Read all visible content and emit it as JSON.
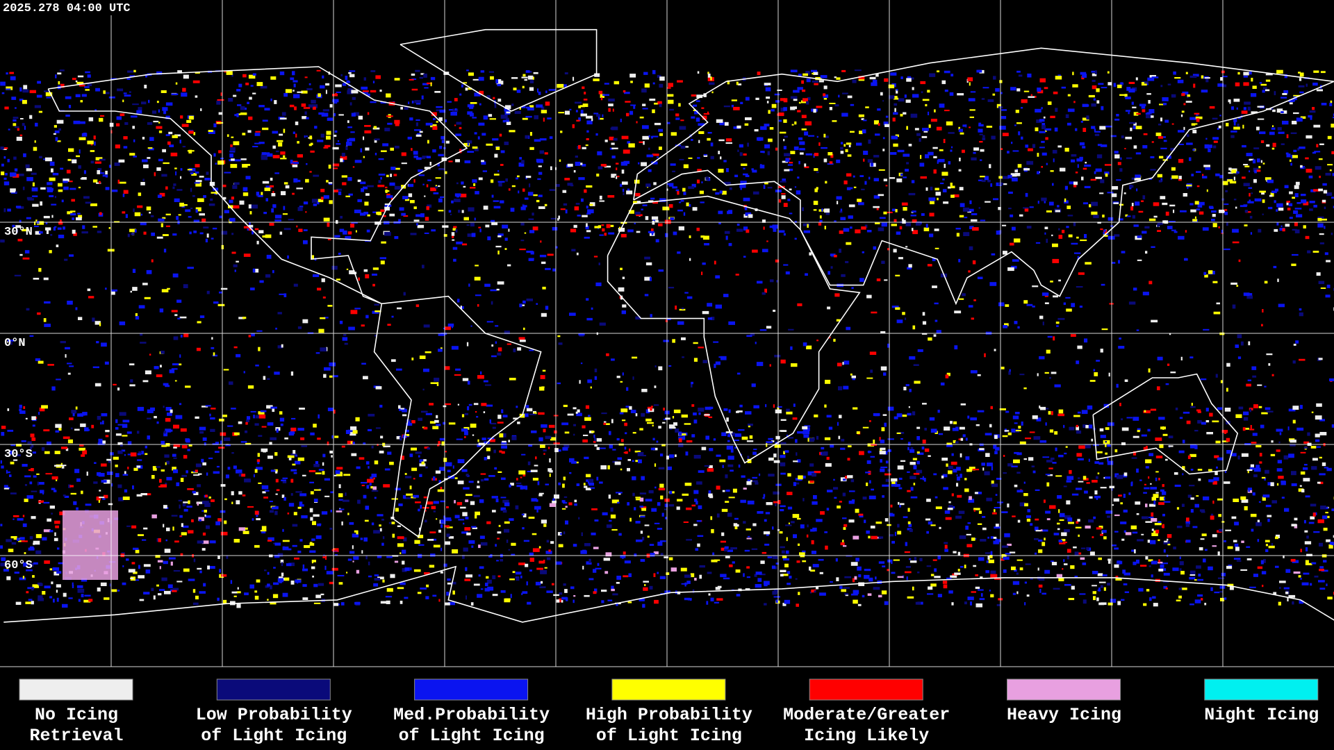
{
  "header": {
    "timestamp": "2025.278 04:00 UTC"
  },
  "map": {
    "latitude_labels": [
      "30°N",
      "0°N",
      "30°S",
      "60°S"
    ]
  },
  "legend": {
    "items": [
      {
        "label": [
          "No Icing",
          "Retrieval"
        ],
        "color": "#eeeeee"
      },
      {
        "label": [
          "Low Probability",
          "of Light Icing"
        ],
        "color": "#0a0a7a"
      },
      {
        "label": [
          "Med.Probability",
          "of Light Icing"
        ],
        "color": "#0a14f0"
      },
      {
        "label": [
          "High Probability",
          "of Light Icing"
        ],
        "color": "#ffff00"
      },
      {
        "label": [
          "Moderate/Greater",
          "Icing Likely"
        ],
        "color": "#ff0000"
      },
      {
        "label": [
          "Heavy Icing"
        ],
        "color": "#e8a0e0"
      },
      {
        "label": [
          "Night Icing"
        ],
        "color": "#00f0f0"
      }
    ]
  }
}
